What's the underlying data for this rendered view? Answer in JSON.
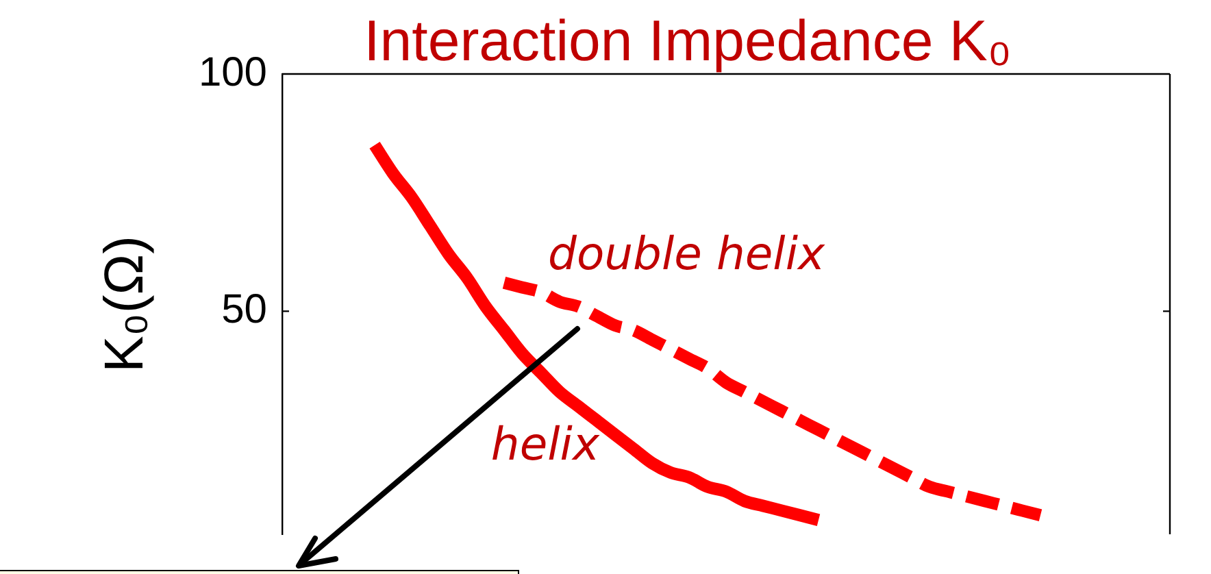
{
  "chart_data": {
    "type": "line",
    "title": "Interaction Impedance K₀",
    "ylabel": "K₀(Ω)",
    "categories": [
      null,
      null,
      null,
      null,
      null,
      null,
      null,
      null,
      null,
      null,
      null,
      null,
      null,
      null,
      null,
      null,
      null,
      null,
      null,
      null,
      null,
      null,
      null,
      null,
      null,
      null,
      null,
      null,
      null,
      null,
      null,
      null,
      null,
      null,
      null,
      null,
      null,
      null,
      null,
      null,
      null,
      null,
      null,
      null,
      null,
      null,
      null,
      null,
      null
    ],
    "ylim": [
      3,
      100
    ],
    "yticks": [
      50,
      100
    ],
    "series": [
      {
        "name": "helix",
        "color": "#ff0000",
        "line_style": "solid",
        "values": [
          null,
          null,
          null,
          null,
          null,
          85,
          79,
          74,
          68,
          62,
          57,
          51,
          46,
          41,
          37,
          33,
          30,
          27,
          24,
          21,
          18,
          16,
          15,
          13,
          12,
          10,
          9,
          8,
          7,
          6,
          null,
          null,
          null,
          null,
          null,
          null,
          null,
          null,
          null,
          null,
          null,
          null,
          null,
          null,
          null,
          null,
          null,
          null,
          null
        ]
      },
      {
        "name": "double helix",
        "color": "#ff0000",
        "line_style": "dashed",
        "values": [
          null,
          null,
          null,
          null,
          null,
          null,
          null,
          null,
          null,
          null,
          null,
          null,
          56,
          55,
          54,
          52,
          51,
          49,
          47,
          46,
          44,
          42,
          40,
          38,
          35,
          33,
          31,
          29,
          27,
          25,
          23,
          21,
          19,
          17,
          15,
          13,
          12,
          11,
          10,
          9,
          8,
          7,
          null,
          null,
          null,
          null,
          null,
          null,
          null
        ]
      }
    ]
  }
}
